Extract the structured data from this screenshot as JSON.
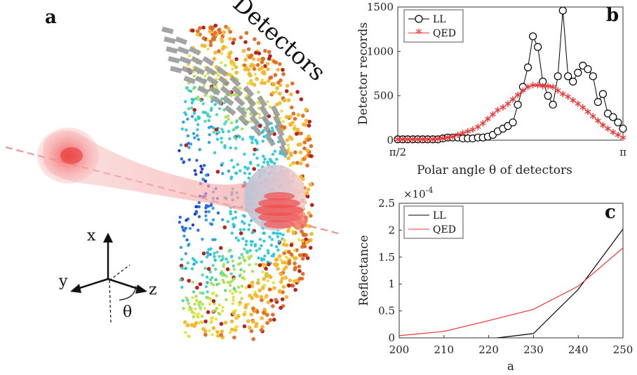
{
  "panels": {
    "a": "a",
    "b": "b",
    "c": "c"
  },
  "illustration": {
    "detectors_label": "Detectors",
    "axes": {
      "x": "x",
      "y": "y",
      "z": "z",
      "theta": "θ"
    }
  },
  "chart_data": [
    {
      "type": "line",
      "panel": "b",
      "title": "",
      "xlabel": "Polar angle θ of detectors",
      "ylabel": "Detector records",
      "xlim": [
        0,
        1
      ],
      "ylim": [
        0,
        1500
      ],
      "x_ticks": [
        {
          "v": 0,
          "label": "π/2"
        },
        {
          "v": 1,
          "label": "π"
        }
      ],
      "y_ticks": [
        0,
        500,
        1000,
        1500
      ],
      "legend": "top-left",
      "series": [
        {
          "name": "LL",
          "marker": "circle",
          "color": "#000000",
          "x": [
            0.0,
            0.022,
            0.044,
            0.067,
            0.089,
            0.111,
            0.133,
            0.156,
            0.178,
            0.2,
            0.222,
            0.244,
            0.267,
            0.289,
            0.311,
            0.333,
            0.356,
            0.378,
            0.4,
            0.422,
            0.444,
            0.467,
            0.489,
            0.511,
            0.533,
            0.556,
            0.578,
            0.6,
            0.622,
            0.644,
            0.667,
            0.689,
            0.711,
            0.733,
            0.756,
            0.778,
            0.8,
            0.822,
            0.844,
            0.867,
            0.889,
            0.911,
            0.933,
            0.956,
            0.978,
            1.0
          ],
          "y": [
            10,
            10,
            10,
            10,
            10,
            10,
            10,
            10,
            10,
            20,
            30,
            30,
            30,
            20,
            20,
            20,
            30,
            30,
            40,
            60,
            100,
            130,
            160,
            200,
            400,
            600,
            820,
            1170,
            1050,
            660,
            500,
            400,
            720,
            1460,
            720,
            660,
            760,
            840,
            800,
            720,
            430,
            520,
            300,
            260,
            200,
            130
          ]
        },
        {
          "name": "QED",
          "marker": "asterisk",
          "color": "#ee3333",
          "x": [
            0.0,
            0.022,
            0.044,
            0.067,
            0.089,
            0.111,
            0.133,
            0.156,
            0.178,
            0.2,
            0.222,
            0.244,
            0.267,
            0.289,
            0.311,
            0.333,
            0.356,
            0.378,
            0.4,
            0.422,
            0.444,
            0.467,
            0.489,
            0.511,
            0.533,
            0.556,
            0.578,
            0.6,
            0.622,
            0.644,
            0.667,
            0.689,
            0.711,
            0.733,
            0.756,
            0.778,
            0.8,
            0.822,
            0.844,
            0.867,
            0.889,
            0.911,
            0.933,
            0.956,
            0.978,
            1.0
          ],
          "y": [
            10,
            10,
            10,
            10,
            10,
            10,
            10,
            10,
            15,
            20,
            30,
            40,
            60,
            80,
            100,
            120,
            150,
            190,
            240,
            290,
            340,
            370,
            410,
            460,
            510,
            560,
            600,
            620,
            620,
            610,
            610,
            600,
            560,
            520,
            490,
            450,
            410,
            370,
            320,
            270,
            220,
            170,
            130,
            90,
            60,
            30
          ]
        }
      ]
    },
    {
      "type": "line",
      "panel": "c",
      "title": "",
      "xlabel": "a",
      "ylabel": "Reflectance",
      "y_exponent_label": "×10",
      "y_exponent_power": "-4",
      "xlim": [
        200,
        250
      ],
      "ylim": [
        0,
        2.5
      ],
      "x_ticks": [
        200,
        210,
        220,
        230,
        240,
        250
      ],
      "y_ticks": [
        0,
        0.5,
        1,
        1.5,
        2,
        2.5
      ],
      "legend": "top-left",
      "series": [
        {
          "name": "LL",
          "color": "#000000",
          "x": [
            200,
            210,
            220,
            230,
            240,
            250
          ],
          "y": [
            -0.05,
            -0.05,
            -0.02,
            0.08,
            0.9,
            2.02
          ]
        },
        {
          "name": "QED",
          "color": "#ee3333",
          "x": [
            200,
            210,
            220,
            230,
            240,
            250
          ],
          "y": [
            0.04,
            0.12,
            0.32,
            0.53,
            0.96,
            1.67
          ]
        }
      ]
    }
  ]
}
